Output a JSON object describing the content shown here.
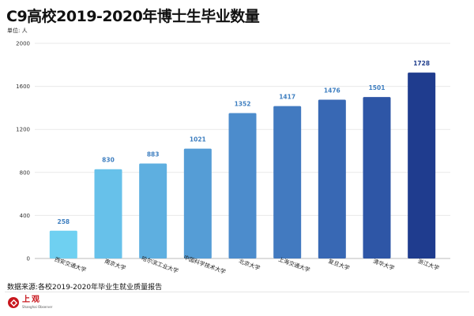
{
  "title": "C9高校2019-2020年博士生毕业数量",
  "unit": "单位: 人",
  "source": "数据来源:各校2019-2020年毕业生就业质量报告",
  "logo": {
    "cn": "上观",
    "en": "Shanghai Observer"
  },
  "colors": {
    "grid": "#e9e9e9",
    "value_label": "#3f7fc0",
    "value_label_last": "#1f3d8c",
    "bars": [
      "#6fd0f1",
      "#67c1ea",
      "#5eafe0",
      "#559dd6",
      "#4c8ccc",
      "#427ac0",
      "#3868b4",
      "#2e56a6",
      "#1f3c8e"
    ]
  },
  "chart_data": {
    "type": "bar",
    "title": "C9高校2019-2020年博士生毕业数量",
    "ylabel": "单位: 人",
    "categories": [
      "西安交通大学",
      "南京大学",
      "哈尔滨工业大学",
      "中国科学技术大学",
      "北京大学",
      "上海交通大学",
      "复旦大学",
      "清华大学",
      "浙江大学"
    ],
    "values": [
      258,
      830,
      883,
      1021,
      1352,
      1417,
      1476,
      1501,
      1728
    ],
    "ylim": [
      0,
      2000
    ],
    "yticks": [
      0,
      400,
      800,
      1200,
      1600,
      2000
    ],
    "grid": true
  }
}
